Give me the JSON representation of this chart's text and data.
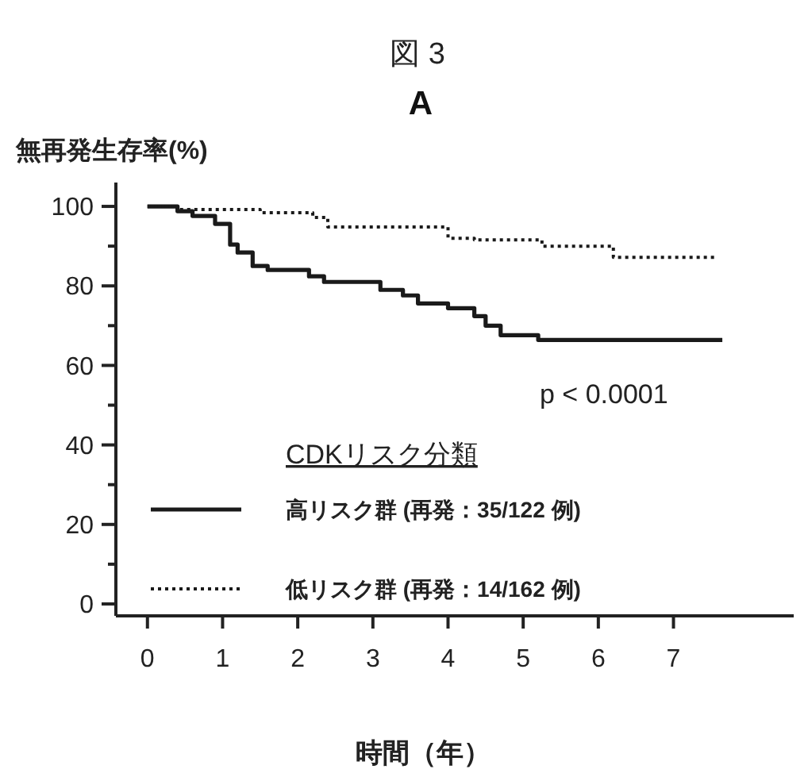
{
  "chart_data": {
    "type": "step",
    "title": "図 3",
    "subtitle": "A",
    "ylabel": "無再発生存率(%)",
    "xlabel": "時間（年）",
    "legend_title": "CDKリスク分類",
    "legend": "bottom",
    "annotations": [
      "p < 0.0001"
    ],
    "xlim": [
      -0.42,
      8.6
    ],
    "ylim": [
      -3,
      106
    ],
    "xticks": [
      0,
      1,
      2,
      3,
      4,
      5,
      6,
      7
    ],
    "yticks": [
      0,
      {
        "value": 10,
        "label": null
      },
      20,
      {
        "value": 30,
        "label": null
      },
      40,
      {
        "value": 50,
        "label": null
      },
      60,
      {
        "value": 70,
        "label": null
      },
      80,
      {
        "value": 90,
        "label": null
      },
      100
    ],
    "series": [
      {
        "name": "高リスク群 (再発：35/122 例)",
        "color": "#1a1a1a",
        "line_style": "solid",
        "x": [
          0,
          0.4,
          0.6,
          0.9,
          1.1,
          1.2,
          1.4,
          1.6,
          2.15,
          2.35,
          3.1,
          3.4,
          3.6,
          4.0,
          4.35,
          4.5,
          4.7,
          5.2,
          7.65
        ],
        "values": [
          100,
          98.8,
          97.6,
          95.6,
          90.4,
          88.4,
          85,
          84,
          82.4,
          81,
          79,
          77.6,
          75.6,
          74.4,
          72.4,
          70,
          67.6,
          66.4,
          66.4
        ]
      },
      {
        "name": "低リスク群 (再発：14/162 例)",
        "color": "#1a1a1a",
        "line_style": "dotted",
        "x": [
          0,
          0.4,
          1.5,
          2.2,
          2.4,
          4.0,
          4.35,
          5.25,
          6.2,
          7.55
        ],
        "values": [
          100,
          99.2,
          98.4,
          97.2,
          94.8,
          92,
          91.6,
          90,
          87.2,
          87.2
        ]
      }
    ]
  }
}
